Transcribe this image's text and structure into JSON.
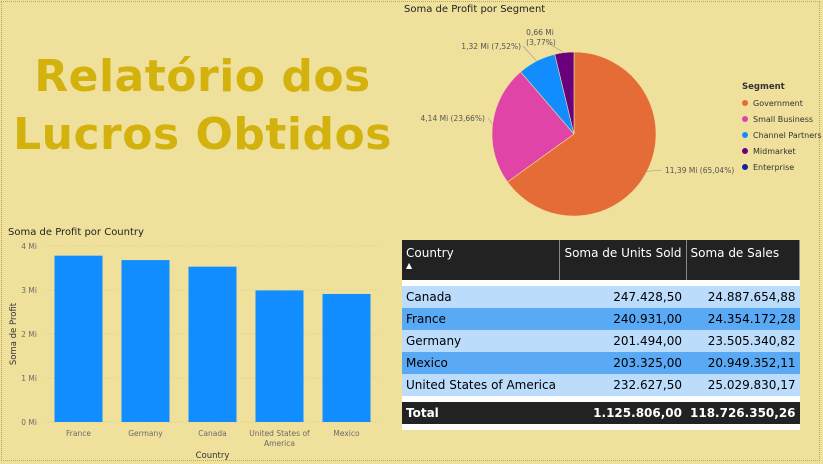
{
  "title_line1": "Relatório dos",
  "title_line2": "Lucros Obtidos",
  "pie": {
    "title": "Soma de Profit por Segment",
    "legend_title": "Segment",
    "slices": [
      {
        "name": "Government",
        "value": 11.39,
        "label": "11,39 Mi (65,04%)",
        "color": "#e66c37"
      },
      {
        "name": "Small Business",
        "value": 4.14,
        "label": "4,14 Mi (23,66%)",
        "color": "#e044a7"
      },
      {
        "name": "Channel Partners",
        "value": 1.32,
        "label": "1,32 Mi (7,52%)",
        "color": "#118dff"
      },
      {
        "name": "Midmarket",
        "value": 0.66,
        "label_1": "0,66 Mi",
        "label_2": "(3,77%)",
        "color": "#6b007b"
      },
      {
        "name": "Enterprise",
        "value": 0.0,
        "color": "#12239e"
      }
    ]
  },
  "bar": {
    "title": "Soma de Profit por Country",
    "xlabel": "Country",
    "ylabel": "Soma de Profit",
    "y_ticks": [
      "0 Mi",
      "1 Mi",
      "2 Mi",
      "3 Mi",
      "4 Mi"
    ],
    "bar_color": "#118dff"
  },
  "chart_data": {
    "type": "bar",
    "title": "Soma de Profit por Country",
    "xlabel": "Country",
    "ylabel": "Soma de Profit",
    "categories": [
      "France",
      "Germany",
      "Canada",
      "United States of America",
      "Mexico"
    ],
    "category_lines": [
      [
        "France"
      ],
      [
        "Germany"
      ],
      [
        "Canada"
      ],
      [
        "United States of",
        "America"
      ],
      [
        "Mexico"
      ]
    ],
    "values": [
      3.78,
      3.68,
      3.53,
      2.99,
      2.91
    ],
    "ylim": [
      0,
      4
    ],
    "grid": true
  },
  "table": {
    "headers": [
      "Country",
      "Soma de Units Sold",
      "Soma de Sales"
    ],
    "rows": [
      [
        "Canada",
        "247.428,50",
        "24.887.654,88"
      ],
      [
        "France",
        "240.931,00",
        "24.354.172,28"
      ],
      [
        "Germany",
        "201.494,00",
        "23.505.340,82"
      ],
      [
        "Mexico",
        "203.325,00",
        "20.949.352,11"
      ],
      [
        "United States of America",
        "232.627,50",
        "25.029.830,17"
      ]
    ],
    "total": [
      "Total",
      "1.125.806,00",
      "118.726.350,26"
    ]
  }
}
